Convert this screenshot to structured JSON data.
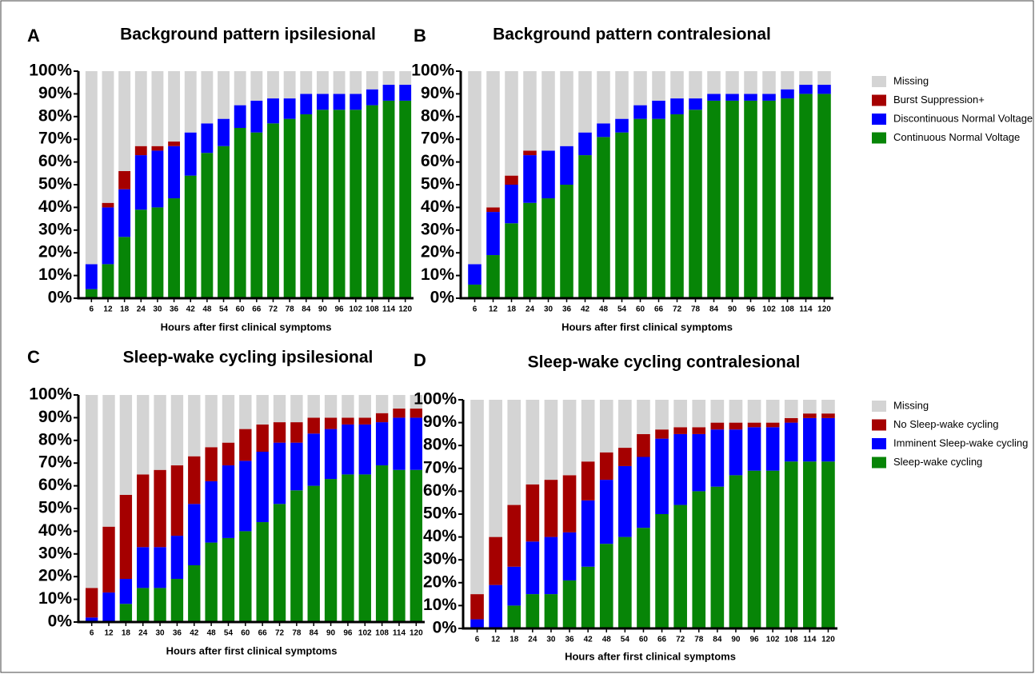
{
  "chart_data": [
    {
      "type": "bar",
      "stacked": true,
      "panel": "A",
      "title": "Background pattern ipsilesional",
      "x_label": "Hours after first clinical symptoms",
      "categories": [
        "6",
        "12",
        "18",
        "24",
        "30",
        "36",
        "42",
        "48",
        "54",
        "60",
        "66",
        "72",
        "78",
        "84",
        "90",
        "96",
        "102",
        "108",
        "114",
        "120"
      ],
      "ylim": [
        0,
        100
      ],
      "yticks": [
        {
          "value": 0,
          "label": "0%"
        },
        {
          "value": 10,
          "label": "10%"
        },
        {
          "value": 20,
          "label": "20%"
        },
        {
          "value": 30,
          "label": "30%"
        },
        {
          "value": 40,
          "label": "40%"
        },
        {
          "value": 50,
          "label": "50%"
        },
        {
          "value": 60,
          "label": "60%"
        },
        {
          "value": 70,
          "label": "70%"
        },
        {
          "value": 80,
          "label": "80%"
        },
        {
          "value": 90,
          "label": "90%"
        },
        {
          "value": 100,
          "label": "100%"
        }
      ],
      "series": [
        {
          "name": "Continuous Normal Voltage",
          "color": "#078507",
          "values": [
            4,
            15,
            27,
            39,
            40,
            44,
            54,
            64,
            67,
            75,
            73,
            77,
            79,
            81,
            83,
            83,
            83,
            85,
            87,
            87
          ]
        },
        {
          "name": "Discontinuous Normal Voltage",
          "color": "#0000ff",
          "values": [
            11,
            25,
            21,
            24,
            25,
            23,
            19,
            13,
            12,
            10,
            14,
            11,
            9,
            9,
            7,
            7,
            7,
            7,
            7,
            7
          ]
        },
        {
          "name": "Burst Suppression+",
          "color": "#a50000",
          "values": [
            0,
            2,
            8,
            4,
            2,
            2,
            0,
            0,
            0,
            0,
            0,
            0,
            0,
            0,
            0,
            0,
            0,
            0,
            0,
            0
          ]
        },
        {
          "name": "Missing",
          "color": "#d4d4d4",
          "values": [
            85,
            58,
            44,
            33,
            33,
            31,
            27,
            23,
            21,
            15,
            13,
            12,
            12,
            10,
            10,
            10,
            10,
            8,
            6,
            6
          ]
        }
      ]
    },
    {
      "type": "bar",
      "stacked": true,
      "panel": "B",
      "title": "Background pattern contralesional",
      "x_label": "Hours after first clinical symptoms",
      "legend": "right",
      "categories": [
        "6",
        "12",
        "18",
        "24",
        "30",
        "36",
        "42",
        "48",
        "54",
        "60",
        "66",
        "72",
        "78",
        "84",
        "90",
        "96",
        "102",
        "108",
        "114",
        "120"
      ],
      "ylim": [
        0,
        100
      ],
      "yticks": [
        {
          "value": 0,
          "label": "0%"
        },
        {
          "value": 10,
          "label": "10%"
        },
        {
          "value": 20,
          "label": "20%"
        },
        {
          "value": 30,
          "label": "30%"
        },
        {
          "value": 40,
          "label": "40%"
        },
        {
          "value": 50,
          "label": "50%"
        },
        {
          "value": 60,
          "label": "60%"
        },
        {
          "value": 70,
          "label": "70%"
        },
        {
          "value": 80,
          "label": "80%"
        },
        {
          "value": 90,
          "label": "90%"
        },
        {
          "value": 100,
          "label": "100%"
        }
      ],
      "series": [
        {
          "name": "Continuous Normal Voltage",
          "color": "#078507",
          "values": [
            6,
            19,
            33,
            42,
            44,
            50,
            63,
            71,
            73,
            79,
            79,
            81,
            83,
            87,
            87,
            87,
            87,
            88,
            90,
            90
          ]
        },
        {
          "name": "Discontinuous Normal Voltage",
          "color": "#0000ff",
          "values": [
            9,
            19,
            17,
            21,
            21,
            17,
            10,
            6,
            6,
            6,
            8,
            7,
            5,
            3,
            3,
            3,
            3,
            4,
            4,
            4
          ]
        },
        {
          "name": "Burst Suppression+",
          "color": "#a50000",
          "values": [
            0,
            2,
            4,
            2,
            0,
            0,
            0,
            0,
            0,
            0,
            0,
            0,
            0,
            0,
            0,
            0,
            0,
            0,
            0,
            0
          ]
        },
        {
          "name": "Missing",
          "color": "#d4d4d4",
          "values": [
            85,
            60,
            46,
            35,
            35,
            33,
            27,
            23,
            21,
            15,
            13,
            12,
            12,
            10,
            10,
            10,
            10,
            8,
            6,
            6
          ]
        }
      ]
    },
    {
      "type": "bar",
      "stacked": true,
      "panel": "C",
      "title": "Sleep-wake cycling ipsilesional",
      "x_label": "Hours after first clinical symptoms",
      "categories": [
        "6",
        "12",
        "18",
        "24",
        "30",
        "36",
        "42",
        "48",
        "54",
        "60",
        "66",
        "72",
        "78",
        "84",
        "90",
        "96",
        "102",
        "108",
        "114",
        "120"
      ],
      "ylim": [
        0,
        100
      ],
      "yticks": [
        {
          "value": 0,
          "label": "0%"
        },
        {
          "value": 10,
          "label": "10%"
        },
        {
          "value": 20,
          "label": "20%"
        },
        {
          "value": 30,
          "label": "30%"
        },
        {
          "value": 40,
          "label": "40%"
        },
        {
          "value": 50,
          "label": "50%"
        },
        {
          "value": 60,
          "label": "60%"
        },
        {
          "value": 70,
          "label": "70%"
        },
        {
          "value": 80,
          "label": "80%"
        },
        {
          "value": 90,
          "label": "90%"
        },
        {
          "value": 100,
          "label": "100%"
        }
      ],
      "series": [
        {
          "name": "Sleep-wake cycling",
          "color": "#078507",
          "values": [
            0,
            0,
            8,
            15,
            15,
            19,
            25,
            35,
            37,
            40,
            44,
            52,
            58,
            60,
            63,
            65,
            65,
            69,
            67,
            67
          ]
        },
        {
          "name": "Imminent Sleep-wake cycling",
          "color": "#0000ff",
          "values": [
            2,
            13,
            11,
            18,
            18,
            19,
            27,
            27,
            32,
            31,
            31,
            27,
            21,
            23,
            22,
            22,
            22,
            19,
            23,
            23
          ]
        },
        {
          "name": "No Sleep-wake cycling",
          "color": "#a50000",
          "values": [
            13,
            29,
            37,
            32,
            34,
            31,
            21,
            15,
            10,
            14,
            12,
            9,
            9,
            7,
            5,
            3,
            3,
            4,
            4,
            4
          ]
        },
        {
          "name": "Missing",
          "color": "#d4d4d4",
          "values": [
            85,
            58,
            44,
            35,
            33,
            31,
            27,
            23,
            21,
            15,
            13,
            12,
            12,
            10,
            10,
            10,
            10,
            8,
            6,
            6
          ]
        }
      ]
    },
    {
      "type": "bar",
      "stacked": true,
      "panel": "D",
      "title": "Sleep-wake cycling contralesional",
      "x_label": "Hours after first clinical symptoms",
      "legend": "right",
      "categories": [
        "6",
        "12",
        "18",
        "24",
        "30",
        "36",
        "42",
        "48",
        "54",
        "60",
        "66",
        "72",
        "78",
        "84",
        "90",
        "96",
        "102",
        "108",
        "114",
        "120"
      ],
      "ylim": [
        0,
        100
      ],
      "yticks": [
        {
          "value": 0,
          "label": "0%"
        },
        {
          "value": 10,
          "label": "10%"
        },
        {
          "value": 20,
          "label": "20%"
        },
        {
          "value": 30,
          "label": "30%"
        },
        {
          "value": 40,
          "label": "40%"
        },
        {
          "value": 50,
          "label": "50%"
        },
        {
          "value": 60,
          "label": "60%"
        },
        {
          "value": 70,
          "label": "70%"
        },
        {
          "value": 80,
          "label": "80%"
        },
        {
          "value": 90,
          "label": "90%"
        },
        {
          "value": 100,
          "label": "100%"
        }
      ],
      "series": [
        {
          "name": "Sleep-wake cycling",
          "color": "#078507",
          "values": [
            0,
            0,
            10,
            15,
            15,
            21,
            27,
            37,
            40,
            44,
            50,
            54,
            60,
            62,
            67,
            69,
            69,
            73,
            73,
            73
          ]
        },
        {
          "name": "Imminent Sleep-wake cycling",
          "color": "#0000ff",
          "values": [
            4,
            19,
            17,
            23,
            25,
            21,
            29,
            28,
            31,
            31,
            33,
            31,
            25,
            25,
            20,
            19,
            19,
            17,
            19,
            19
          ]
        },
        {
          "name": "No Sleep-wake cycling",
          "color": "#a50000",
          "values": [
            11,
            21,
            27,
            25,
            25,
            25,
            17,
            12,
            8,
            10,
            4,
            3,
            3,
            3,
            3,
            2,
            2,
            2,
            2,
            2
          ]
        },
        {
          "name": "Missing",
          "color": "#d4d4d4",
          "values": [
            85,
            60,
            46,
            37,
            35,
            33,
            27,
            23,
            21,
            15,
            13,
            12,
            12,
            10,
            10,
            10,
            10,
            8,
            6,
            6
          ]
        }
      ]
    }
  ]
}
